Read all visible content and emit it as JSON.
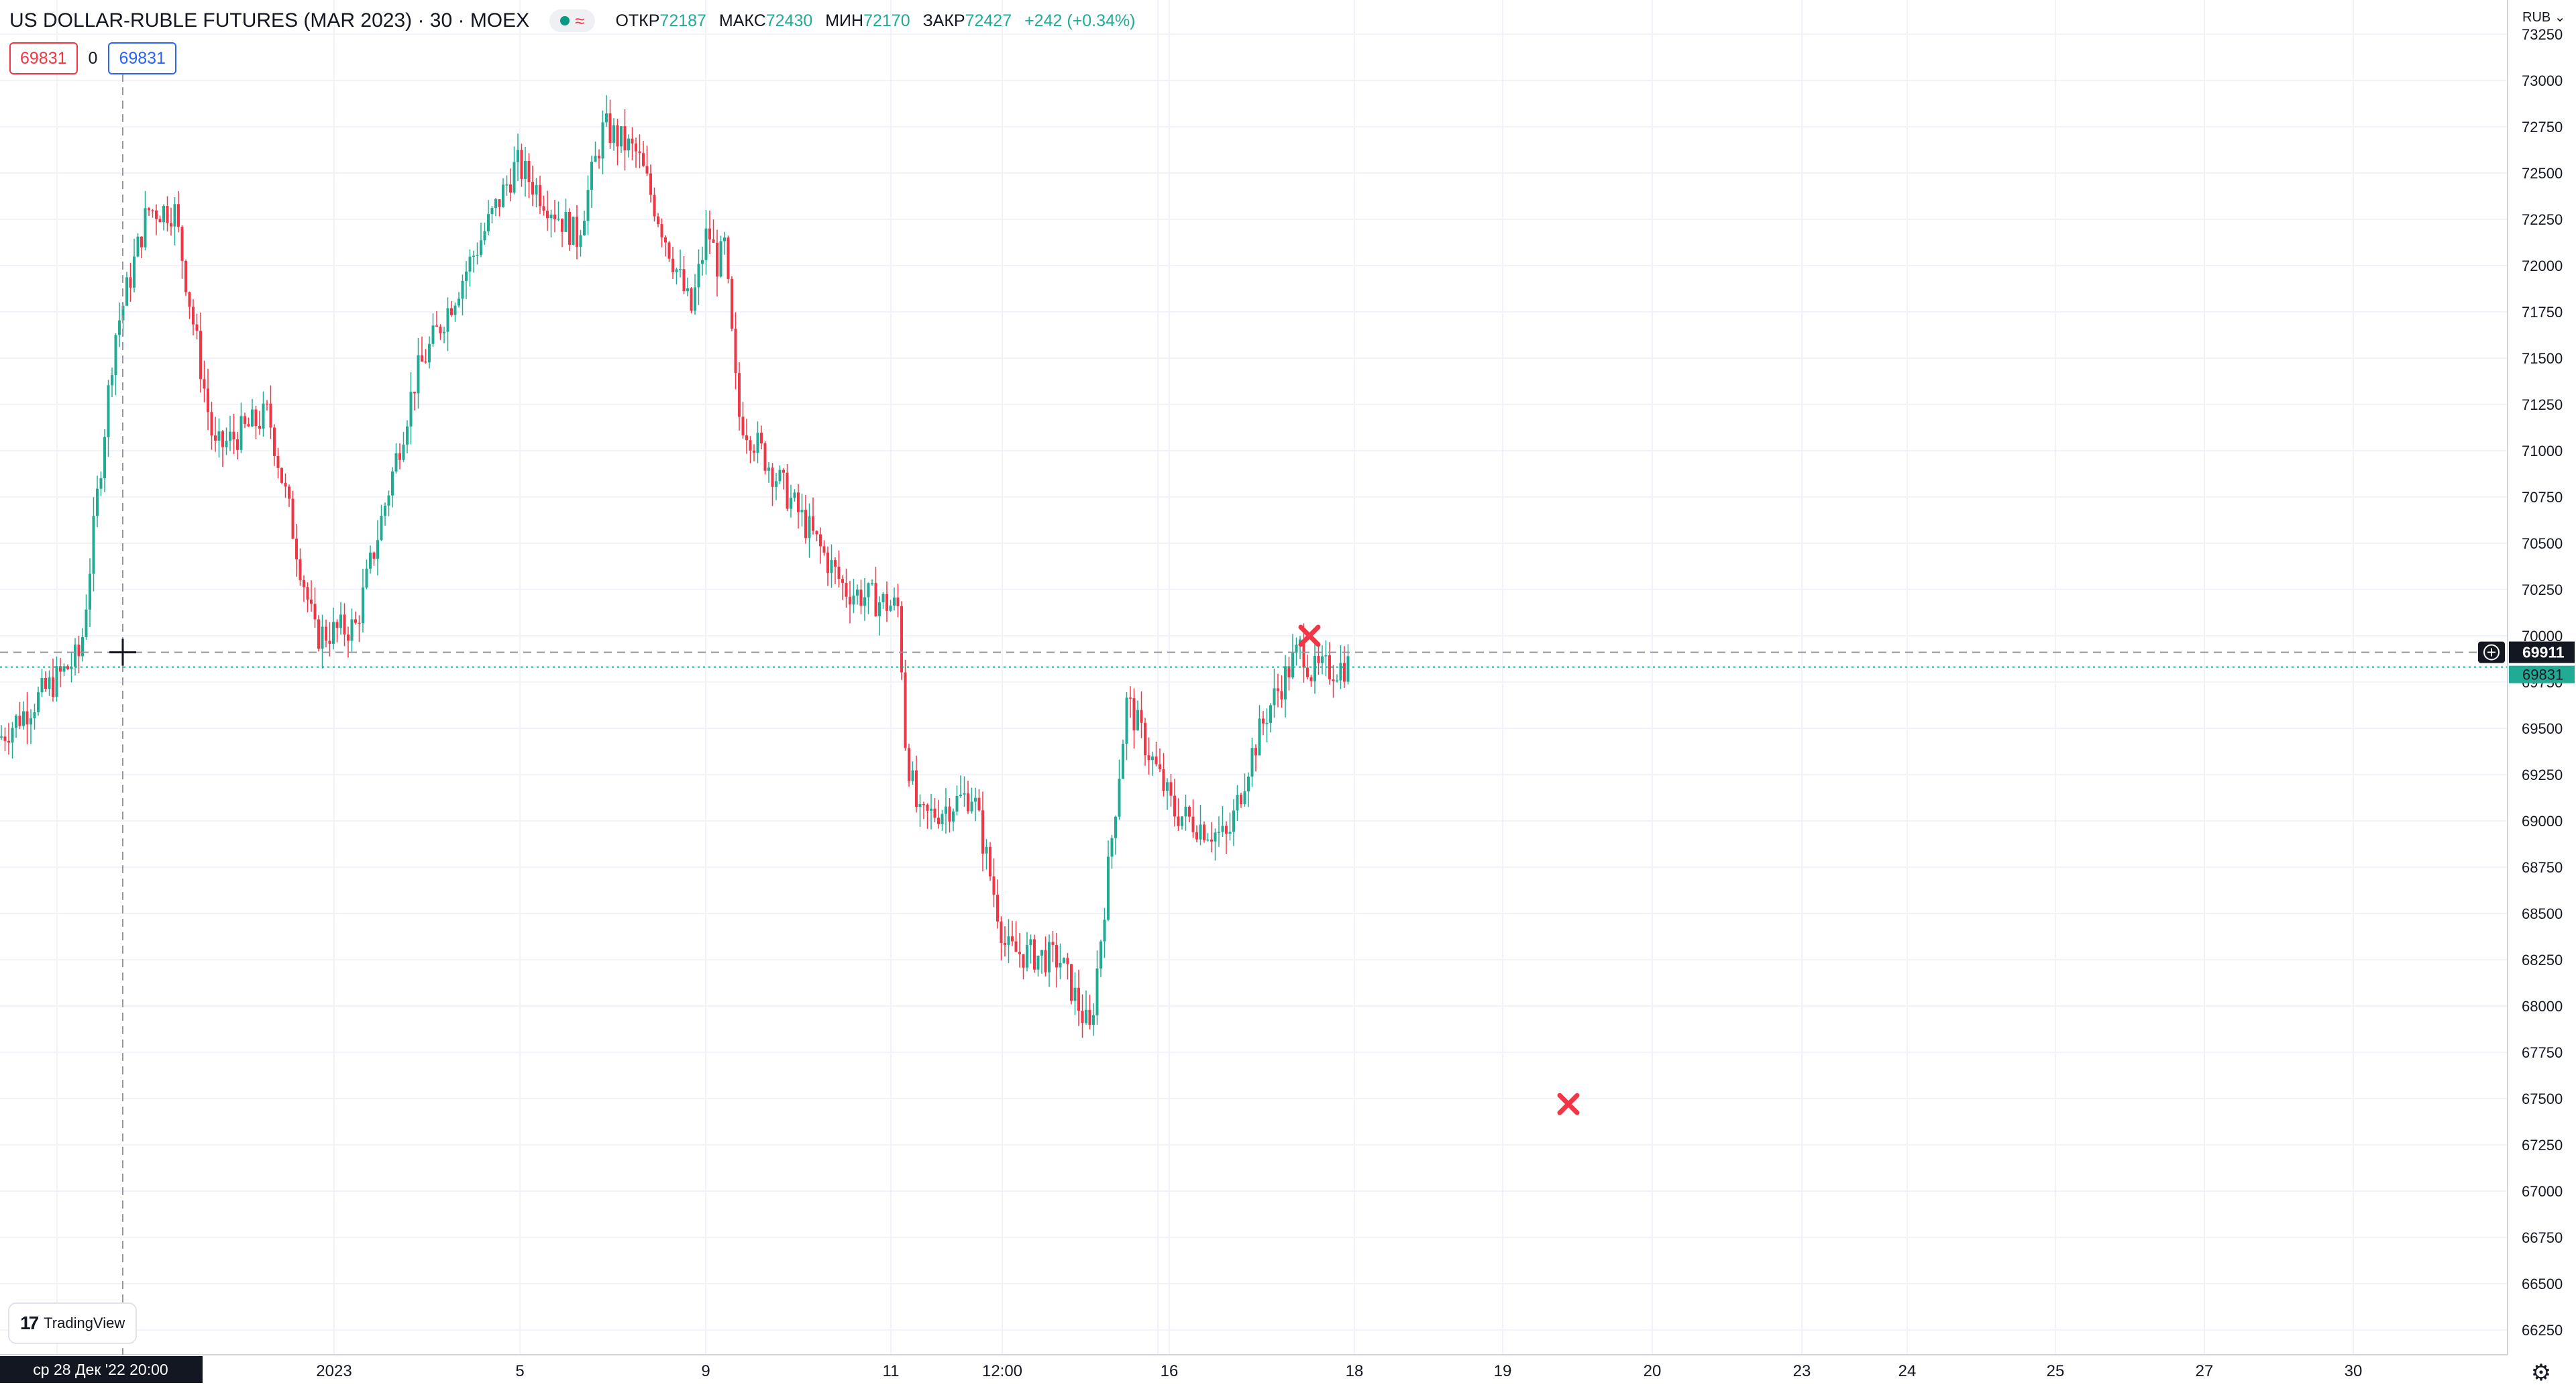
{
  "legend": {
    "title": "US DOLLAR-RUBLE FUTURES (MAR 2023) · 30 · MOEX",
    "open_label": "ОТКР",
    "open_value": "72187",
    "high_label": "МАКС",
    "high_value": "72430",
    "low_label": "МИН",
    "low_value": "72170",
    "close_label": "ЗАКР",
    "close_value": "72427",
    "change": "+242 (+0.34%)",
    "market_status_icon": "market-open-dot-icon",
    "wave_icon": "≈"
  },
  "trading": {
    "sell_price": "69831",
    "spread": "0",
    "buy_price": "69831"
  },
  "price_axis": {
    "currency": "RUB",
    "ticks": [
      "73250",
      "73000",
      "72750",
      "72500",
      "72250",
      "72000",
      "71750",
      "71500",
      "71250",
      "71000",
      "70750",
      "70500",
      "70250",
      "70000",
      "69750",
      "69500",
      "69250",
      "69000",
      "68750",
      "68500",
      "68250",
      "68000",
      "67750",
      "67500",
      "67250",
      "67000",
      "66750",
      "66500",
      "66250"
    ],
    "crosshair_price": "69911",
    "last_price": "69831"
  },
  "time_axis": {
    "labels": [
      "2023",
      "5",
      "9",
      "11",
      "12:00",
      "16",
      "18",
      "19",
      "20",
      "23",
      "24",
      "25",
      "27",
      "30"
    ],
    "crosshair_label": "ср 28 Дек '22   20:00"
  },
  "markers": [
    "x-marker-icon",
    "x-marker-icon"
  ],
  "branding": {
    "logo": "TradingView"
  },
  "colors": {
    "up": "#22ab94",
    "down": "#f23645",
    "grid": "#f0f3fa",
    "axis_text": "#131722",
    "crosshair": "#9598a1"
  },
  "chart_data": {
    "type": "candlestick",
    "title": "US DOLLAR-RUBLE FUTURES (MAR 2023) · 30 · MOEX",
    "y_unit": "RUB",
    "ylim": [
      66100,
      73350
    ],
    "grid": true,
    "x_range_days": [
      "27 Dec 2022",
      "30 Jan 2023"
    ],
    "close_path": [
      [
        "27 Dec",
        69550
      ],
      [
        "28 Dec",
        70100
      ],
      [
        "28 Dec",
        71600
      ],
      [
        "29 Dec",
        72300
      ],
      [
        "29 Dec",
        71000
      ],
      [
        "30 Dec",
        71300
      ],
      [
        "30 Dec",
        70000
      ],
      [
        "3 Jan",
        70050
      ],
      [
        "4 Jan",
        71400
      ],
      [
        "4 Jan",
        72100
      ],
      [
        "5 Jan",
        72550
      ],
      [
        "6 Jan",
        72150
      ],
      [
        "6 Jan",
        72750
      ],
      [
        "6 Jan",
        72650
      ],
      [
        "9 Jan",
        71750
      ],
      [
        "9 Jan",
        72200
      ],
      [
        "9 Jan",
        72000
      ],
      [
        "10 Jan",
        71200
      ],
      [
        "10 Jan",
        70300
      ],
      [
        "11 Jan",
        70250
      ],
      [
        "11 Jan",
        70300
      ],
      [
        "11 Jan",
        70150
      ],
      [
        "12 Jan",
        69000
      ],
      [
        "12 Jan",
        69150
      ],
      [
        "13 Jan",
        68350
      ],
      [
        "13 Jan",
        68250
      ],
      [
        "13 Jan",
        67900
      ],
      [
        "16 Jan",
        69650
      ],
      [
        "16 Jan",
        69050
      ],
      [
        "17 Jan",
        69200
      ],
      [
        "17 Jan",
        68900
      ],
      [
        "17 Jan",
        69600
      ],
      [
        "17 Jan",
        69950
      ],
      [
        "18 Jan",
        69800
      ]
    ],
    "markers_at": [
      [
        "17 Jan",
        70000
      ],
      [
        "19 Jan",
        67470
      ]
    ]
  }
}
